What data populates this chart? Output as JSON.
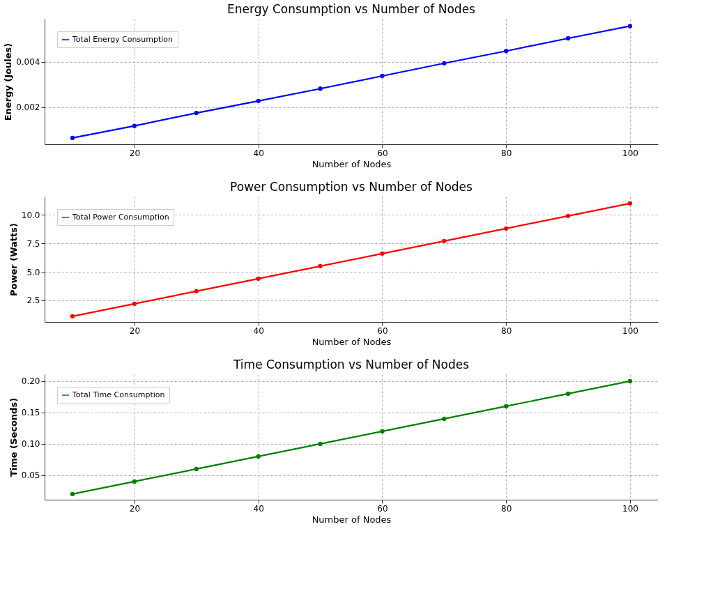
{
  "chart_data": [
    {
      "type": "line",
      "title": "Energy Consumption vs Number of Nodes",
      "xlabel": "Number of Nodes",
      "ylabel": "Energy (Joules)",
      "x": [
        10,
        20,
        30,
        40,
        50,
        60,
        70,
        80,
        90,
        100
      ],
      "xlim": [
        5.5,
        104.5
      ],
      "xticks": [
        20,
        40,
        60,
        80,
        100
      ],
      "ylim": [
        0.00037,
        0.0059
      ],
      "yticks": [
        0.002,
        0.004
      ],
      "grid": true,
      "legend": "top left",
      "marker": "circle",
      "line_style": "solid",
      "series": [
        {
          "name": "Total Energy Consumption",
          "color": "#0000ff",
          "values": [
            0.00065,
            0.00118,
            0.00175,
            0.00228,
            0.00282,
            0.00338,
            0.00394,
            0.00448,
            0.00504,
            0.00558
          ]
        }
      ]
    },
    {
      "type": "line",
      "title": "Power Consumption vs Number of Nodes",
      "xlabel": "Number of Nodes",
      "ylabel": "Power (Watts)",
      "x": [
        10,
        20,
        30,
        40,
        50,
        60,
        70,
        80,
        90,
        100
      ],
      "xlim": [
        5.5,
        104.5
      ],
      "xticks": [
        20,
        40,
        60,
        80,
        100
      ],
      "ylim": [
        0.6,
        11.6
      ],
      "yticks": [
        {
          "value": 2.5,
          "label": "2.5"
        },
        {
          "value": 5,
          "label": "5.0"
        },
        {
          "value": 7.5,
          "label": "7.5"
        },
        {
          "value": 10,
          "label": "10.0"
        }
      ],
      "grid": true,
      "legend": "top left",
      "marker": "circle",
      "line_style": "solid",
      "series": [
        {
          "name": "Total Power Consumption",
          "color": "#ff0000",
          "values": [
            1.1,
            2.2,
            3.3,
            4.4,
            5.5,
            6.6,
            7.7,
            8.8,
            9.9,
            11.0
          ]
        }
      ]
    },
    {
      "type": "line",
      "title": "Time Consumption vs Number of Nodes",
      "xlabel": "Number of Nodes",
      "ylabel": "Time (Seconds)",
      "x": [
        10,
        20,
        30,
        40,
        50,
        60,
        70,
        80,
        90,
        100
      ],
      "xlim": [
        5.5,
        104.5
      ],
      "xticks": [
        20,
        40,
        60,
        80,
        100
      ],
      "ylim": [
        0.011,
        0.211
      ],
      "yticks": [
        0.05,
        {
          "value": 0.1,
          "label": "0.10"
        },
        0.15,
        {
          "value": 0.2,
          "label": "0.20"
        }
      ],
      "grid": true,
      "legend": "top left",
      "marker": "circle",
      "line_style": "solid",
      "series": [
        {
          "name": "Total Time Consumption",
          "color": "#008000",
          "values": [
            0.02,
            0.04,
            0.06,
            0.08,
            0.1,
            0.12,
            0.14,
            0.16,
            0.18,
            0.2
          ]
        }
      ]
    }
  ]
}
